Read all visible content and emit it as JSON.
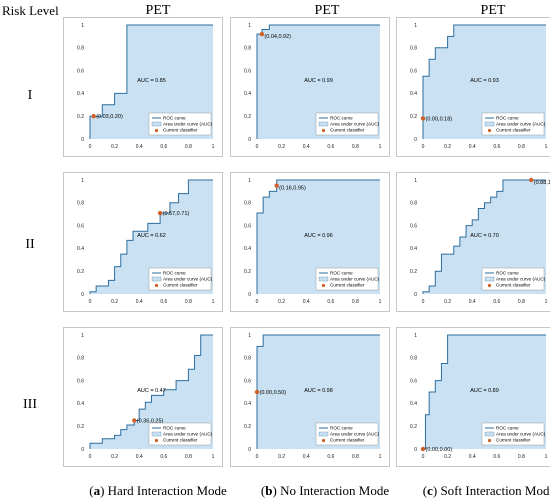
{
  "labels": {
    "risk_level": "Risk Level",
    "col_titles": [
      "PET",
      "PET",
      "PET"
    ],
    "row_labels": [
      "I",
      "II",
      "III"
    ],
    "captions": [
      {
        "letter": "a",
        "text": " Hard Interaction Mode"
      },
      {
        "letter": "b",
        "text": " No Interaction Mode"
      },
      {
        "letter": "c",
        "text": " Soft Interaction Mode"
      }
    ],
    "legend": [
      "ROC curve",
      "Area under curve (AUC)",
      "Current classifier"
    ]
  },
  "colors": {
    "fill": "#c9e1f2",
    "line": "#2e6e9e",
    "point": "#d0602a",
    "border": "#b8b8b8"
  },
  "chart_data": [
    {
      "type": "area",
      "row": 0,
      "col": 0,
      "auc_label": "AUC = 0.85",
      "point": [
        0.03,
        0.2
      ],
      "point_label": "(0.03,0.20)",
      "xlim": [
        0,
        1
      ],
      "ylim": [
        0,
        1
      ],
      "ticks": [
        "0",
        "0.2",
        "0.4",
        "0.6",
        "0.8",
        "1"
      ],
      "curve": [
        [
          0,
          0
        ],
        [
          0,
          0.2
        ],
        [
          0.1,
          0.2
        ],
        [
          0.1,
          0.3
        ],
        [
          0.2,
          0.3
        ],
        [
          0.2,
          0.4
        ],
        [
          0.3,
          0.4
        ],
        [
          0.3,
          1
        ],
        [
          1,
          1
        ]
      ]
    },
    {
      "type": "area",
      "row": 0,
      "col": 1,
      "auc_label": "AUC = 0.99",
      "point": [
        0.04,
        0.92
      ],
      "point_label": "(0.04,0.92)",
      "xlim": [
        0,
        1
      ],
      "ylim": [
        0,
        1
      ],
      "ticks": [
        "0",
        "0.2",
        "0.4",
        "0.6",
        "0.8",
        "1"
      ],
      "curve": [
        [
          0,
          0
        ],
        [
          0,
          0.92
        ],
        [
          0.04,
          0.92
        ],
        [
          0.04,
          0.96
        ],
        [
          0.1,
          0.96
        ],
        [
          0.1,
          1
        ],
        [
          1,
          1
        ]
      ]
    },
    {
      "type": "area",
      "row": 0,
      "col": 2,
      "auc_label": "AUC = 0.93",
      "point": [
        0.0,
        0.18
      ],
      "point_label": "(0.00,0.18)",
      "xlim": [
        0,
        1
      ],
      "ylim": [
        0,
        1
      ],
      "ticks": [
        "0",
        "0.2",
        "0.4",
        "0.6",
        "0.8",
        "1"
      ],
      "curve": [
        [
          0,
          0
        ],
        [
          0,
          0.55
        ],
        [
          0.05,
          0.55
        ],
        [
          0.05,
          0.7
        ],
        [
          0.1,
          0.7
        ],
        [
          0.1,
          0.8
        ],
        [
          0.2,
          0.8
        ],
        [
          0.2,
          0.9
        ],
        [
          0.25,
          0.9
        ],
        [
          0.25,
          1
        ],
        [
          1,
          1
        ]
      ]
    },
    {
      "type": "area",
      "row": 1,
      "col": 0,
      "auc_label": "AUC = 0.62",
      "point": [
        0.57,
        0.71
      ],
      "point_label": "(0.57,0.71)",
      "xlim": [
        0,
        1
      ],
      "ylim": [
        0,
        1
      ],
      "ticks": [
        "0",
        "0.2",
        "0.4",
        "0.6",
        "0.8",
        "1"
      ],
      "curve": [
        [
          0,
          0
        ],
        [
          0,
          0.02
        ],
        [
          0.05,
          0.02
        ],
        [
          0.05,
          0.07
        ],
        [
          0.15,
          0.07
        ],
        [
          0.15,
          0.12
        ],
        [
          0.2,
          0.12
        ],
        [
          0.2,
          0.24
        ],
        [
          0.25,
          0.24
        ],
        [
          0.25,
          0.35
        ],
        [
          0.3,
          0.35
        ],
        [
          0.3,
          0.47
        ],
        [
          0.35,
          0.47
        ],
        [
          0.35,
          0.55
        ],
        [
          0.47,
          0.55
        ],
        [
          0.47,
          0.62
        ],
        [
          0.57,
          0.62
        ],
        [
          0.57,
          0.71
        ],
        [
          0.65,
          0.71
        ],
        [
          0.65,
          0.8
        ],
        [
          0.72,
          0.8
        ],
        [
          0.72,
          0.88
        ],
        [
          0.8,
          0.88
        ],
        [
          0.8,
          1
        ],
        [
          1,
          1
        ]
      ]
    },
    {
      "type": "area",
      "row": 1,
      "col": 1,
      "auc_label": "AUC = 0.96",
      "point": [
        0.16,
        0.95
      ],
      "point_label": "(0.16,0.95)",
      "xlim": [
        0,
        1
      ],
      "ylim": [
        0,
        1
      ],
      "ticks": [
        "0",
        "0.2",
        "0.4",
        "0.6",
        "0.8",
        "1"
      ],
      "curve": [
        [
          0,
          0
        ],
        [
          0,
          0.71
        ],
        [
          0.05,
          0.71
        ],
        [
          0.05,
          0.85
        ],
        [
          0.1,
          0.85
        ],
        [
          0.1,
          0.9
        ],
        [
          0.16,
          0.9
        ],
        [
          0.16,
          1
        ],
        [
          1,
          1
        ]
      ]
    },
    {
      "type": "area",
      "row": 1,
      "col": 2,
      "auc_label": "AUC = 0.70",
      "point": [
        0.88,
        1.0
      ],
      "point_label": "(0.88,1.00)",
      "xlim": [
        0,
        1
      ],
      "ylim": [
        0,
        1
      ],
      "ticks": [
        "0",
        "0.2",
        "0.4",
        "0.6",
        "0.8",
        "1"
      ],
      "curve": [
        [
          0,
          0
        ],
        [
          0,
          0.02
        ],
        [
          0.05,
          0.02
        ],
        [
          0.05,
          0.07
        ],
        [
          0.1,
          0.07
        ],
        [
          0.1,
          0.2
        ],
        [
          0.15,
          0.2
        ],
        [
          0.15,
          0.35
        ],
        [
          0.25,
          0.35
        ],
        [
          0.25,
          0.42
        ],
        [
          0.3,
          0.42
        ],
        [
          0.3,
          0.5
        ],
        [
          0.35,
          0.5
        ],
        [
          0.35,
          0.6
        ],
        [
          0.4,
          0.6
        ],
        [
          0.4,
          0.65
        ],
        [
          0.45,
          0.65
        ],
        [
          0.45,
          0.75
        ],
        [
          0.5,
          0.75
        ],
        [
          0.5,
          0.8
        ],
        [
          0.55,
          0.8
        ],
        [
          0.55,
          0.85
        ],
        [
          0.6,
          0.85
        ],
        [
          0.6,
          0.9
        ],
        [
          0.65,
          0.9
        ],
        [
          0.65,
          1
        ],
        [
          1,
          1
        ]
      ]
    },
    {
      "type": "area",
      "row": 2,
      "col": 0,
      "auc_label": "AUC = 0.47",
      "point": [
        0.36,
        0.25
      ],
      "point_label": "(0.36,0.25)",
      "xlim": [
        0,
        1
      ],
      "ylim": [
        0,
        1
      ],
      "ticks": [
        "0",
        "0.2",
        "0.4",
        "0.6",
        "0.8",
        "1"
      ],
      "curve": [
        [
          0,
          0
        ],
        [
          0,
          0.05
        ],
        [
          0.1,
          0.05
        ],
        [
          0.1,
          0.09
        ],
        [
          0.2,
          0.09
        ],
        [
          0.2,
          0.12
        ],
        [
          0.25,
          0.12
        ],
        [
          0.25,
          0.17
        ],
        [
          0.3,
          0.17
        ],
        [
          0.3,
          0.21
        ],
        [
          0.36,
          0.21
        ],
        [
          0.36,
          0.25
        ],
        [
          0.4,
          0.25
        ],
        [
          0.4,
          0.35
        ],
        [
          0.45,
          0.35
        ],
        [
          0.45,
          0.41
        ],
        [
          0.5,
          0.41
        ],
        [
          0.5,
          0.47
        ],
        [
          0.6,
          0.47
        ],
        [
          0.6,
          0.52
        ],
        [
          0.7,
          0.52
        ],
        [
          0.7,
          0.6
        ],
        [
          0.8,
          0.6
        ],
        [
          0.8,
          0.7
        ],
        [
          0.85,
          0.7
        ],
        [
          0.85,
          0.82
        ],
        [
          0.9,
          0.82
        ],
        [
          0.9,
          1
        ],
        [
          1,
          1
        ]
      ]
    },
    {
      "type": "area",
      "row": 2,
      "col": 1,
      "auc_label": "AUC = 0.98",
      "point": [
        0.0,
        0.5
      ],
      "point_label": "(0.00,0.50)",
      "xlim": [
        0,
        1
      ],
      "ylim": [
        0,
        1
      ],
      "ticks": [
        "0",
        "0.2",
        "0.4",
        "0.6",
        "0.8",
        "1"
      ],
      "curve": [
        [
          0,
          0
        ],
        [
          0,
          0.9
        ],
        [
          0.05,
          0.9
        ],
        [
          0.05,
          1
        ],
        [
          1,
          1
        ]
      ]
    },
    {
      "type": "area",
      "row": 2,
      "col": 2,
      "auc_label": "AUC = 0.89",
      "point": [
        0.0,
        0.0
      ],
      "point_label": "(0.00,0.00)",
      "xlim": [
        0,
        1
      ],
      "ylim": [
        0,
        1
      ],
      "ticks": [
        "0",
        "0.2",
        "0.4",
        "0.6",
        "0.8",
        "1"
      ],
      "curve": [
        [
          0,
          0
        ],
        [
          0.02,
          0
        ],
        [
          0.02,
          0.3
        ],
        [
          0.05,
          0.3
        ],
        [
          0.05,
          0.5
        ],
        [
          0.1,
          0.5
        ],
        [
          0.1,
          0.6
        ],
        [
          0.15,
          0.6
        ],
        [
          0.15,
          0.75
        ],
        [
          0.2,
          0.75
        ],
        [
          0.2,
          1
        ],
        [
          1,
          1
        ]
      ]
    }
  ]
}
